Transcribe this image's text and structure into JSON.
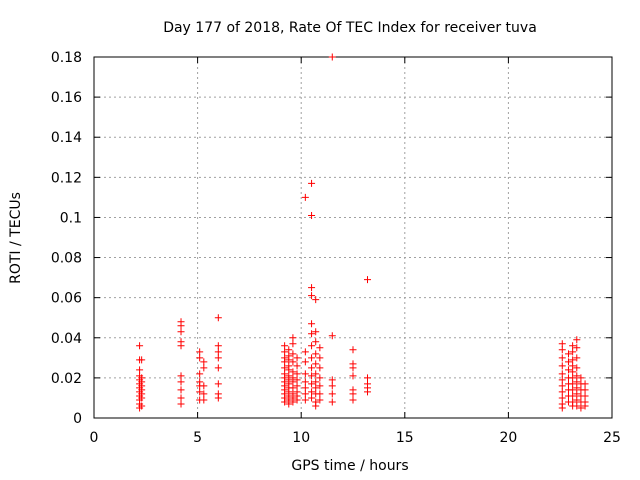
{
  "chart_data": {
    "type": "scatter",
    "title": "Day 177 of 2018, Rate Of TEC Index for receiver tuva",
    "xlabel": "GPS time / hours",
    "ylabel": "ROTI / TECUs",
    "xlim": [
      0,
      25
    ],
    "ylim": [
      0,
      0.18
    ],
    "x_ticks": [
      "0",
      "5",
      "10",
      "15",
      "20",
      "25"
    ],
    "y_ticks": [
      "0",
      "0.02",
      "0.04",
      "0.06",
      "0.08",
      "0.1",
      "0.12",
      "0.14",
      "0.16",
      "0.18"
    ],
    "x_tick_values": [
      0,
      5,
      10,
      15,
      20,
      25
    ],
    "y_tick_values": [
      0,
      0.02,
      0.04,
      0.06,
      0.08,
      0.1,
      0.12,
      0.14,
      0.16,
      0.18
    ],
    "grid": true,
    "marker": "+",
    "color": "#ff0000",
    "points": [
      [
        2.2,
        0.036
      ],
      [
        2.2,
        0.029
      ],
      [
        2.2,
        0.024
      ],
      [
        2.2,
        0.021
      ],
      [
        2.2,
        0.019
      ],
      [
        2.2,
        0.017
      ],
      [
        2.2,
        0.015
      ],
      [
        2.2,
        0.013
      ],
      [
        2.2,
        0.011
      ],
      [
        2.2,
        0.009
      ],
      [
        2.2,
        0.007
      ],
      [
        2.2,
        0.005
      ],
      [
        2.3,
        0.029
      ],
      [
        2.3,
        0.02
      ],
      [
        2.3,
        0.018
      ],
      [
        2.3,
        0.016
      ],
      [
        2.3,
        0.014
      ],
      [
        2.3,
        0.012
      ],
      [
        2.3,
        0.01
      ],
      [
        2.3,
        0.006
      ],
      [
        4.2,
        0.048
      ],
      [
        4.2,
        0.046
      ],
      [
        4.2,
        0.043
      ],
      [
        4.2,
        0.038
      ],
      [
        4.2,
        0.036
      ],
      [
        4.2,
        0.021
      ],
      [
        4.2,
        0.018
      ],
      [
        4.2,
        0.014
      ],
      [
        4.2,
        0.01
      ],
      [
        4.2,
        0.007
      ],
      [
        5.1,
        0.033
      ],
      [
        5.1,
        0.03
      ],
      [
        5.1,
        0.022
      ],
      [
        5.1,
        0.018
      ],
      [
        5.1,
        0.016
      ],
      [
        5.1,
        0.013
      ],
      [
        5.1,
        0.009
      ],
      [
        5.3,
        0.028
      ],
      [
        5.3,
        0.025
      ],
      [
        5.3,
        0.016
      ],
      [
        5.3,
        0.012
      ],
      [
        5.3,
        0.009
      ],
      [
        6.0,
        0.05
      ],
      [
        6.0,
        0.036
      ],
      [
        6.0,
        0.033
      ],
      [
        6.0,
        0.03
      ],
      [
        6.0,
        0.025
      ],
      [
        6.0,
        0.017
      ],
      [
        6.0,
        0.012
      ],
      [
        6.0,
        0.01
      ],
      [
        9.2,
        0.036
      ],
      [
        9.2,
        0.033
      ],
      [
        9.2,
        0.03
      ],
      [
        9.2,
        0.028
      ],
      [
        9.2,
        0.025
      ],
      [
        9.2,
        0.022
      ],
      [
        9.2,
        0.02
      ],
      [
        9.2,
        0.018
      ],
      [
        9.2,
        0.016
      ],
      [
        9.2,
        0.014
      ],
      [
        9.2,
        0.012
      ],
      [
        9.2,
        0.01
      ],
      [
        9.2,
        0.008
      ],
      [
        9.4,
        0.034
      ],
      [
        9.4,
        0.031
      ],
      [
        9.4,
        0.029
      ],
      [
        9.4,
        0.026
      ],
      [
        9.4,
        0.024
      ],
      [
        9.4,
        0.021
      ],
      [
        9.4,
        0.019
      ],
      [
        9.4,
        0.017
      ],
      [
        9.4,
        0.015
      ],
      [
        9.4,
        0.013
      ],
      [
        9.4,
        0.011
      ],
      [
        9.4,
        0.009
      ],
      [
        9.4,
        0.007
      ],
      [
        9.6,
        0.04
      ],
      [
        9.6,
        0.037
      ],
      [
        9.6,
        0.032
      ],
      [
        9.6,
        0.028
      ],
      [
        9.6,
        0.023
      ],
      [
        9.6,
        0.02
      ],
      [
        9.6,
        0.018
      ],
      [
        9.6,
        0.015
      ],
      [
        9.6,
        0.012
      ],
      [
        9.6,
        0.01
      ],
      [
        9.6,
        0.008
      ],
      [
        9.8,
        0.03
      ],
      [
        9.8,
        0.026
      ],
      [
        9.8,
        0.022
      ],
      [
        9.8,
        0.019
      ],
      [
        9.8,
        0.016
      ],
      [
        9.8,
        0.013
      ],
      [
        9.8,
        0.011
      ],
      [
        9.8,
        0.009
      ],
      [
        10.2,
        0.11
      ],
      [
        10.2,
        0.033
      ],
      [
        10.2,
        0.028
      ],
      [
        10.2,
        0.022
      ],
      [
        10.2,
        0.018
      ],
      [
        10.2,
        0.015
      ],
      [
        10.2,
        0.012
      ],
      [
        10.2,
        0.009
      ],
      [
        10.5,
        0.117
      ],
      [
        10.5,
        0.101
      ],
      [
        10.5,
        0.065
      ],
      [
        10.5,
        0.061
      ],
      [
        10.5,
        0.047
      ],
      [
        10.5,
        0.042
      ],
      [
        10.5,
        0.036
      ],
      [
        10.5,
        0.03
      ],
      [
        10.5,
        0.025
      ],
      [
        10.5,
        0.021
      ],
      [
        10.5,
        0.017
      ],
      [
        10.5,
        0.013
      ],
      [
        10.5,
        0.01
      ],
      [
        10.7,
        0.059
      ],
      [
        10.7,
        0.043
      ],
      [
        10.7,
        0.038
      ],
      [
        10.7,
        0.032
      ],
      [
        10.7,
        0.027
      ],
      [
        10.7,
        0.022
      ],
      [
        10.7,
        0.018
      ],
      [
        10.7,
        0.015
      ],
      [
        10.7,
        0.012
      ],
      [
        10.7,
        0.008
      ],
      [
        10.7,
        0.006
      ],
      [
        10.9,
        0.035
      ],
      [
        10.9,
        0.03
      ],
      [
        10.9,
        0.025
      ],
      [
        10.9,
        0.02
      ],
      [
        10.9,
        0.016
      ],
      [
        10.9,
        0.012
      ],
      [
        10.9,
        0.009
      ],
      [
        11.5,
        0.18
      ],
      [
        11.5,
        0.041
      ],
      [
        11.5,
        0.019
      ],
      [
        11.5,
        0.016
      ],
      [
        11.5,
        0.012
      ],
      [
        11.5,
        0.008
      ],
      [
        12.5,
        0.034
      ],
      [
        12.5,
        0.027
      ],
      [
        12.5,
        0.025
      ],
      [
        12.5,
        0.021
      ],
      [
        12.5,
        0.014
      ],
      [
        12.5,
        0.012
      ],
      [
        12.5,
        0.009
      ],
      [
        13.2,
        0.069
      ],
      [
        13.2,
        0.02
      ],
      [
        13.2,
        0.017
      ],
      [
        13.2,
        0.015
      ],
      [
        13.2,
        0.013
      ],
      [
        22.6,
        0.037
      ],
      [
        22.6,
        0.034
      ],
      [
        22.6,
        0.03
      ],
      [
        22.6,
        0.026
      ],
      [
        22.6,
        0.022
      ],
      [
        22.6,
        0.019
      ],
      [
        22.6,
        0.016
      ],
      [
        22.6,
        0.013
      ],
      [
        22.6,
        0.01
      ],
      [
        22.6,
        0.007
      ],
      [
        22.6,
        0.005
      ],
      [
        22.9,
        0.032
      ],
      [
        22.9,
        0.028
      ],
      [
        22.9,
        0.024
      ],
      [
        22.9,
        0.02
      ],
      [
        22.9,
        0.017
      ],
      [
        22.9,
        0.014
      ],
      [
        22.9,
        0.011
      ],
      [
        22.9,
        0.008
      ],
      [
        23.1,
        0.036
      ],
      [
        23.1,
        0.033
      ],
      [
        23.1,
        0.029
      ],
      [
        23.1,
        0.026
      ],
      [
        23.1,
        0.023
      ],
      [
        23.1,
        0.02
      ],
      [
        23.1,
        0.017
      ],
      [
        23.1,
        0.014
      ],
      [
        23.1,
        0.011
      ],
      [
        23.1,
        0.008
      ],
      [
        23.1,
        0.006
      ],
      [
        23.3,
        0.039
      ],
      [
        23.3,
        0.035
      ],
      [
        23.3,
        0.03
      ],
      [
        23.3,
        0.025
      ],
      [
        23.3,
        0.021
      ],
      [
        23.3,
        0.018
      ],
      [
        23.3,
        0.015
      ],
      [
        23.3,
        0.012
      ],
      [
        23.3,
        0.009
      ],
      [
        23.3,
        0.006
      ],
      [
        23.5,
        0.02
      ],
      [
        23.5,
        0.017
      ],
      [
        23.5,
        0.014
      ],
      [
        23.5,
        0.011
      ],
      [
        23.5,
        0.008
      ],
      [
        23.5,
        0.005
      ],
      [
        23.7,
        0.017
      ],
      [
        23.7,
        0.014
      ],
      [
        23.7,
        0.011
      ],
      [
        23.7,
        0.008
      ],
      [
        23.7,
        0.006
      ]
    ]
  }
}
